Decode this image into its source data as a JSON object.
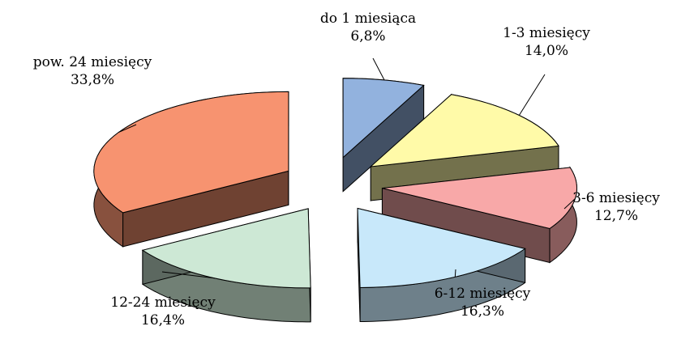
{
  "chart_data": {
    "type": "pie",
    "style": "exploded-3d",
    "legend": "none",
    "slices": [
      {
        "label": "do 1 miesiąca",
        "value": 6.8,
        "value_label": "6,8%",
        "color": "#92B2DE"
      },
      {
        "label": "1-3 miesięcy",
        "value": 14.0,
        "value_label": "14,0%",
        "color": "#FFFAA8"
      },
      {
        "label": "3-6 miesięcy",
        "value": 12.7,
        "value_label": "12,7%",
        "color": "#F8A8A8"
      },
      {
        "label": "6-12 miesięcy",
        "value": 16.3,
        "value_label": "16,3%",
        "color": "#C8E8FA"
      },
      {
        "label": "12-24 miesięcy",
        "value": 16.4,
        "value_label": "16,4%",
        "color": "#CDE8D5"
      },
      {
        "label": "pow. 24 miesięcy",
        "value": 33.8,
        "value_label": "33,8%",
        "color": "#F79370"
      }
    ]
  }
}
